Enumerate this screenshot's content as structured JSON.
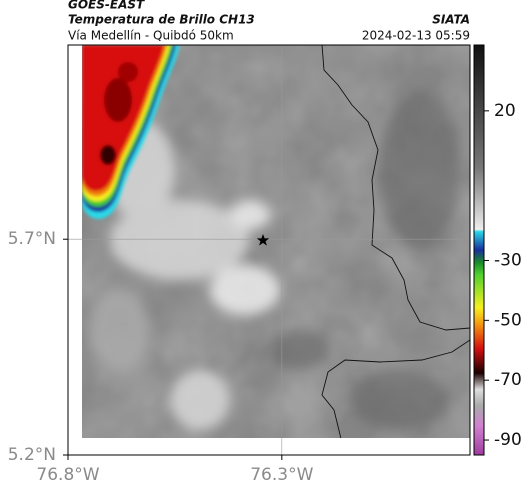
{
  "header": {
    "title": "GOES-EAST",
    "subtitle": "Temperatura de Brillo CH13",
    "route": "Vía Medellín - Quibdó 50km",
    "source": "SIATA",
    "datetime": "2024-02-13 05:59"
  },
  "map": {
    "xlim": [
      -76.8,
      -75.86
    ],
    "ylim": [
      5.2,
      6.15
    ],
    "xticks": [
      {
        "value": -76.8,
        "label": "76.8°W"
      },
      {
        "value": -76.3,
        "label": "76.3°W"
      }
    ],
    "yticks": [
      {
        "value": 5.2,
        "label": "5.2°N"
      },
      {
        "value": 5.7,
        "label": "5.7°N"
      }
    ],
    "grid": true
  },
  "colorbar": {
    "lim": [
      -95,
      42
    ],
    "ticks": [
      20,
      -30,
      -50,
      -70,
      -90
    ]
  }
}
